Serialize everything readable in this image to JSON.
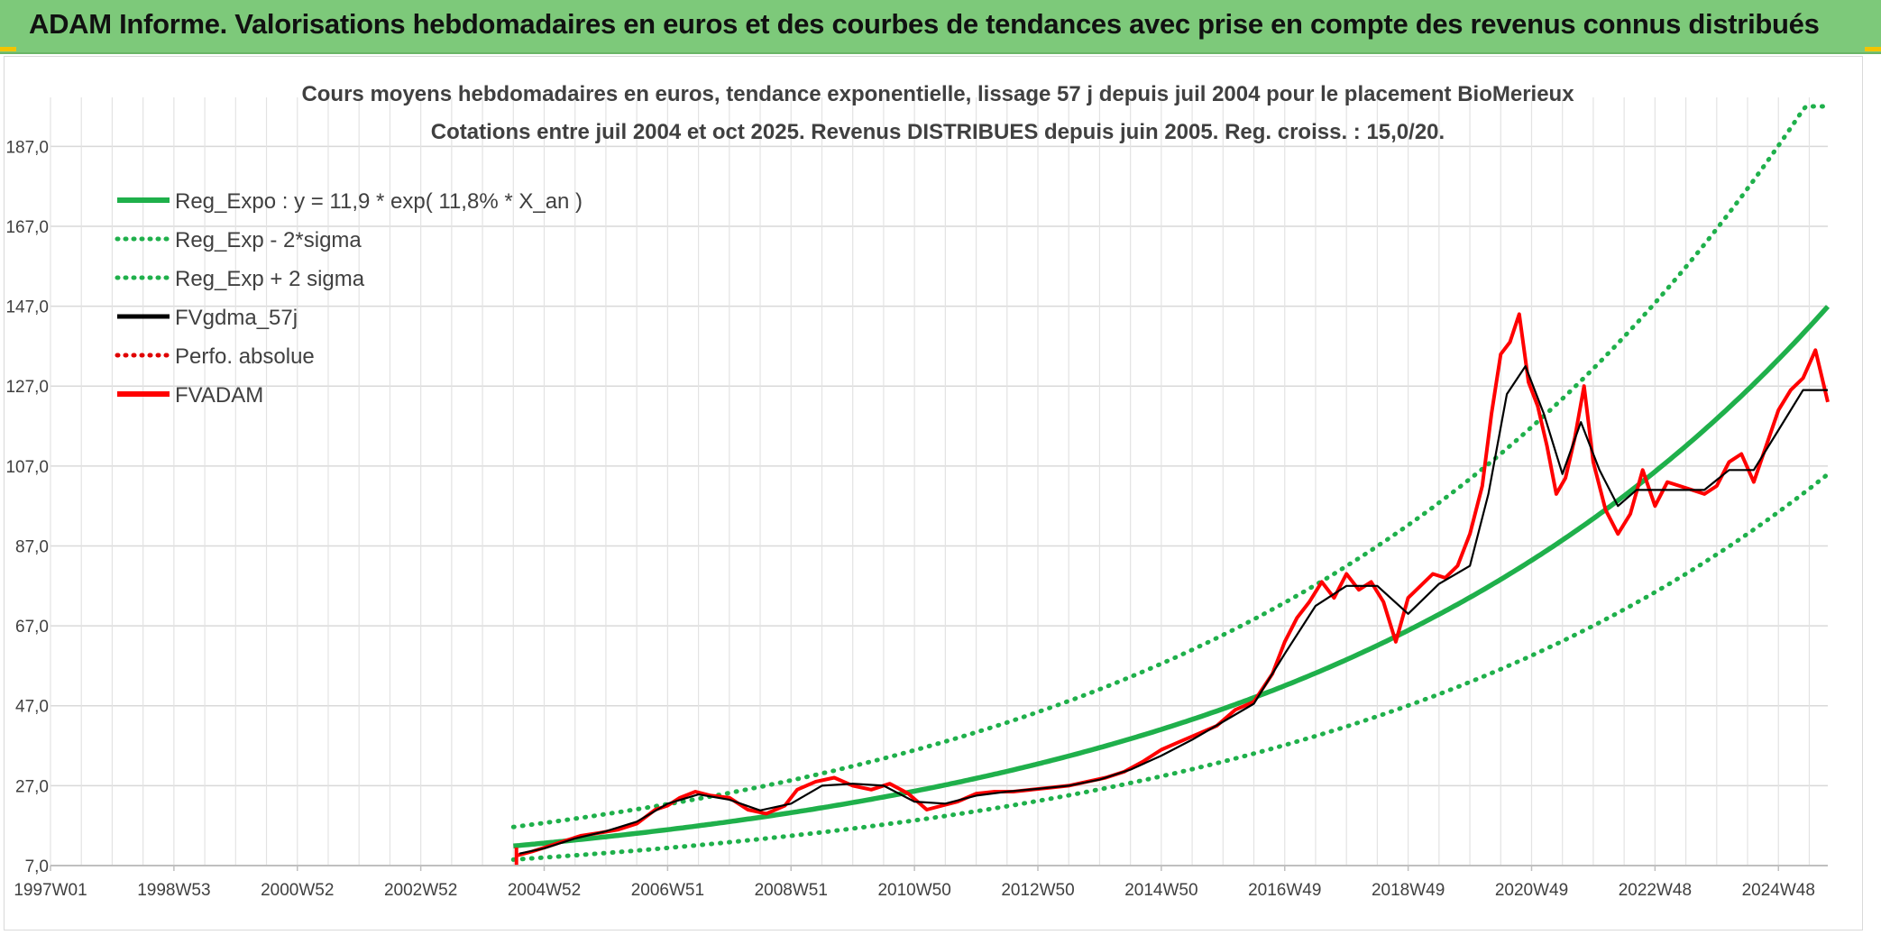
{
  "banner": {
    "title": "ADAM Informe. Valorisations hebdomadaires en euros et des courbes de tendances avec prise en compte des revenus connus distribués",
    "background_color": "#7dc97a"
  },
  "chart_data": {
    "type": "line",
    "title": "Cours moyens hebdomadaires en euros, tendance exponentielle, lissage 57 j depuis juil 2004 pour le placement BioMerieux",
    "subtitle": "Cotations entre juil 2004 et oct 2025. Revenus DISTRIBUES depuis juin 2005. Reg. croiss. : 15,0/20.",
    "xlabel": "",
    "ylabel": "",
    "x_range": [
      1997.0,
      2025.8
    ],
    "ylim": [
      7.0,
      197.0
    ],
    "y_ticks": [
      "7,0",
      "27,0",
      "47,0",
      "67,0",
      "87,0",
      "107,0",
      "127,0",
      "147,0",
      "167,0",
      "187,0"
    ],
    "x_ticks": [
      {
        "label": "1997W01",
        "year": 1997.0
      },
      {
        "label": "1998W53",
        "year": 1999.0
      },
      {
        "label": "2000W52",
        "year": 2001.0
      },
      {
        "label": "2002W52",
        "year": 2003.0
      },
      {
        "label": "2004W52",
        "year": 2005.0
      },
      {
        "label": "2006W51",
        "year": 2007.0
      },
      {
        "label": "2008W51",
        "year": 2009.0
      },
      {
        "label": "2010W50",
        "year": 2011.0
      },
      {
        "label": "2012W50",
        "year": 2013.0
      },
      {
        "label": "2014W50",
        "year": 2015.0
      },
      {
        "label": "2016W49",
        "year": 2017.0
      },
      {
        "label": "2018W49",
        "year": 2019.0
      },
      {
        "label": "2020W49",
        "year": 2021.0
      },
      {
        "label": "2022W48",
        "year": 2023.0
      },
      {
        "label": "2024W48",
        "year": 2025.0
      }
    ],
    "grid": true,
    "legend_position": "top-left",
    "legend": [
      {
        "name": "Reg_Expo : y = 11,9 * exp( 11,8% *  X_an )",
        "color": "#1fb04b",
        "style": "solid-thick"
      },
      {
        "name": "Reg_Exp - 2*sigma",
        "color": "#1fb04b",
        "style": "dotted"
      },
      {
        "name": "Reg_Exp + 2 sigma",
        "color": "#1fb04b",
        "style": "dotted"
      },
      {
        "name": "FVgdma_57j",
        "color": "#000000",
        "style": "solid"
      },
      {
        "name": "Perfo. absolue",
        "color": "#e00000",
        "style": "dotted"
      },
      {
        "name": "FVADAM",
        "color": "#ff0000",
        "style": "solid-thick"
      }
    ],
    "regression": {
      "formula": "y = 11,9 * exp( 11,8% *  X_an )",
      "start_year": 2004.5,
      "end_year": 2025.8,
      "start_value": 11.9,
      "growth_rate": 0.118,
      "sigma_factor": 1.4,
      "upper_cap": 197.0
    },
    "series": [
      {
        "name": "FVADAM",
        "color": "#ff0000",
        "x": [
          2004.55,
          2004.8,
          2005.0,
          2005.3,
          2005.6,
          2005.9,
          2006.2,
          2006.5,
          2006.8,
          2007.0,
          2007.2,
          2007.45,
          2007.7,
          2008.0,
          2008.3,
          2008.6,
          2008.9,
          2009.1,
          2009.4,
          2009.7,
          2010.0,
          2010.3,
          2010.6,
          2010.9,
          2011.2,
          2011.45,
          2011.7,
          2012.0,
          2012.3,
          2012.6,
          2012.9,
          2013.2,
          2013.5,
          2013.8,
          2014.1,
          2014.4,
          2014.7,
          2015.0,
          2015.3,
          2015.6,
          2015.9,
          2016.2,
          2016.5,
          2016.8,
          2017.0,
          2017.2,
          2017.4,
          2017.6,
          2017.8,
          2018.0,
          2018.2,
          2018.4,
          2018.6,
          2018.8,
          2019.0,
          2019.2,
          2019.4,
          2019.6,
          2019.8,
          2020.0,
          2020.2,
          2020.35,
          2020.5,
          2020.65,
          2020.8,
          2020.95,
          2021.1,
          2021.25,
          2021.4,
          2021.55,
          2021.7,
          2021.85,
          2022.0,
          2022.2,
          2022.4,
          2022.6,
          2022.8,
          2023.0,
          2023.2,
          2023.4,
          2023.6,
          2023.8,
          2024.0,
          2024.2,
          2024.4,
          2024.6,
          2024.8,
          2025.0,
          2025.2,
          2025.4,
          2025.6,
          2025.8
        ],
        "values": [
          9.5,
          10.5,
          11.5,
          13.0,
          14.5,
          15.2,
          16.0,
          17.5,
          21.0,
          22.0,
          24.0,
          25.5,
          24.5,
          24.0,
          21.0,
          20.0,
          22.0,
          26.0,
          28.0,
          29.0,
          27.0,
          26.0,
          27.5,
          25.0,
          21.0,
          22.0,
          23.0,
          25.0,
          25.5,
          25.5,
          26.0,
          26.5,
          27.0,
          28.0,
          29.0,
          30.5,
          33.0,
          36.0,
          38.0,
          40.0,
          42.0,
          46.0,
          48.0,
          55.0,
          63.0,
          69.0,
          73.0,
          78.0,
          74.0,
          80.0,
          76.0,
          78.0,
          73.0,
          63.0,
          74.0,
          77.0,
          80.0,
          79.0,
          82.0,
          90.0,
          102.0,
          120.0,
          135.0,
          138.0,
          145.0,
          128.0,
          122.0,
          112.0,
          100.0,
          104.0,
          114.0,
          127.0,
          108.0,
          96.0,
          90.0,
          95.0,
          106.0,
          97.0,
          103.0,
          102.0,
          101.0,
          100.0,
          102.0,
          108.0,
          110.0,
          103.0,
          112.0,
          121.0,
          126.0,
          129.0,
          136.0,
          123.0
        ]
      },
      {
        "name": "FVgdma_57j",
        "color": "#000000",
        "x": [
          2004.6,
          2005.0,
          2005.5,
          2006.0,
          2006.5,
          2007.0,
          2007.5,
          2008.0,
          2008.5,
          2009.0,
          2009.5,
          2010.0,
          2010.5,
          2011.0,
          2011.5,
          2012.0,
          2012.5,
          2013.0,
          2013.5,
          2014.0,
          2014.5,
          2015.0,
          2015.5,
          2016.0,
          2016.5,
          2017.0,
          2017.5,
          2018.0,
          2018.5,
          2019.0,
          2019.5,
          2020.0,
          2020.3,
          2020.6,
          2020.9,
          2021.2,
          2021.5,
          2021.8,
          2022.1,
          2022.4,
          2022.7,
          2023.0,
          2023.4,
          2023.8,
          2024.2,
          2024.6,
          2025.0,
          2025.4,
          2025.8
        ],
        "values": [
          10.0,
          11.3,
          13.8,
          15.6,
          18.0,
          22.5,
          24.8,
          23.5,
          20.8,
          22.5,
          27.0,
          27.5,
          27.0,
          23.0,
          22.5,
          24.5,
          25.5,
          26.2,
          27.0,
          28.5,
          31.0,
          34.5,
          38.5,
          43.0,
          47.5,
          60.0,
          72.0,
          77.0,
          77.0,
          70.0,
          77.5,
          82.0,
          100.0,
          125.0,
          132.0,
          120.0,
          105.0,
          118.0,
          106.0,
          97.0,
          101.0,
          101.0,
          101.0,
          101.0,
          106.0,
          106.0,
          116.0,
          126.0,
          126.0
        ]
      },
      {
        "name": "Perfo. absolue",
        "color": "#e00000",
        "x": [],
        "values": []
      }
    ]
  }
}
